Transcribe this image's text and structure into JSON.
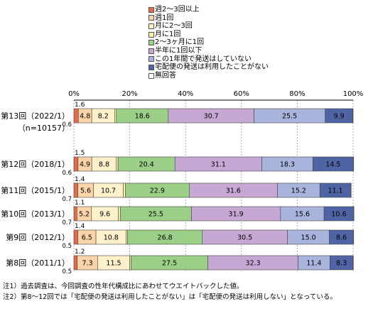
{
  "chart_data": {
    "type": "bar",
    "orientation": "horizontal",
    "stacked": true,
    "xlim": [
      0,
      100
    ],
    "x_tick_labels": [
      "0%",
      "20%",
      "40%",
      "60%",
      "80%",
      "100%"
    ],
    "categories": [
      {
        "label": "第13回（2022/1）",
        "sublabel": "（n=10157）"
      },
      {
        "label": "第12回（2018/1）",
        "sublabel": ""
      },
      {
        "label": "第11回（2015/1）",
        "sublabel": ""
      },
      {
        "label": "第10回（2013/1）",
        "sublabel": ""
      },
      {
        "label": "第9回（2012/1）",
        "sublabel": ""
      },
      {
        "label": "第8回（2011/1）",
        "sublabel": ""
      }
    ],
    "series": [
      {
        "name": "週2～3回以上",
        "color": "#e46a4a",
        "values": [
          1.6,
          1.5,
          1.4,
          1.1,
          1.4,
          1.2
        ],
        "labels": [
          "1.6",
          "1.5",
          "1.4",
          "1.1",
          "1.4",
          "1.2"
        ]
      },
      {
        "name": "週1回",
        "color": "#fbd3a8",
        "values": [
          4.8,
          4.9,
          5.6,
          5.2,
          6.5,
          7.3
        ],
        "labels": [
          "4.8",
          "4.9",
          "5.6",
          "5.2",
          "6.5",
          "7.3"
        ]
      },
      {
        "name": "月に2～3回",
        "color": "#fdf1cc",
        "values": [
          8.2,
          8.8,
          10.7,
          9.6,
          10.8,
          11.5
        ],
        "labels": [
          "8.2",
          "8.8",
          "10.7",
          "9.6",
          "10.8",
          "11.5"
        ]
      },
      {
        "name": "月に1回",
        "color": "#fbf6a8",
        "values": [
          0.6,
          0.6,
          0.7,
          0.7,
          0.5,
          0.5
        ],
        "labels": [
          "0.6",
          "0.6",
          "0.7",
          "0.7",
          "0.5",
          "0.5"
        ]
      },
      {
        "name": "2～3ヶ月に1回",
        "color": "#9bcf88",
        "values": [
          18.6,
          20.4,
          22.9,
          25.5,
          26.8,
          27.5
        ],
        "labels": [
          "18.6",
          "20.4",
          "22.9",
          "25.5",
          "26.8",
          "27.5"
        ]
      },
      {
        "name": "半年に1回以下",
        "color": "#c7a8d4",
        "values": [
          30.7,
          31.1,
          31.6,
          31.9,
          30.5,
          32.3
        ],
        "labels": [
          "30.7",
          "31.1",
          "31.6",
          "31.9",
          "30.5",
          "32.3"
        ]
      },
      {
        "name": "この1年間で発送はしていない",
        "color": "#a8b4dc",
        "values": [
          25.5,
          18.3,
          15.2,
          15.6,
          15.0,
          11.4
        ],
        "labels": [
          "25.5",
          "18.3",
          "15.2",
          "15.6",
          "15.0",
          "11.4"
        ]
      },
      {
        "name": "宅配便の発送は利用したことがない",
        "color": "#4f64a4",
        "values": [
          9.9,
          14.5,
          11.1,
          10.6,
          8.6,
          8.3
        ],
        "labels": [
          "9.9",
          "14.5",
          "11.1",
          "10.6",
          "8.6",
          "8.3"
        ]
      },
      {
        "name": "無回答",
        "color": "#ffffff",
        "values": [
          0.1,
          0.1,
          0.1,
          0.1,
          0.1,
          0.1
        ],
        "labels": [
          "",
          "",
          "",
          "",
          "",
          ""
        ]
      }
    ],
    "notes": [
      "注1）過去調査は、今回調査の性年代構成比にあわせてウエイトバックした値。",
      "注2）第8～12回では「宅配便の発送は利用したことがない」は「宅配便の発送は利用しない」となっている。"
    ]
  }
}
